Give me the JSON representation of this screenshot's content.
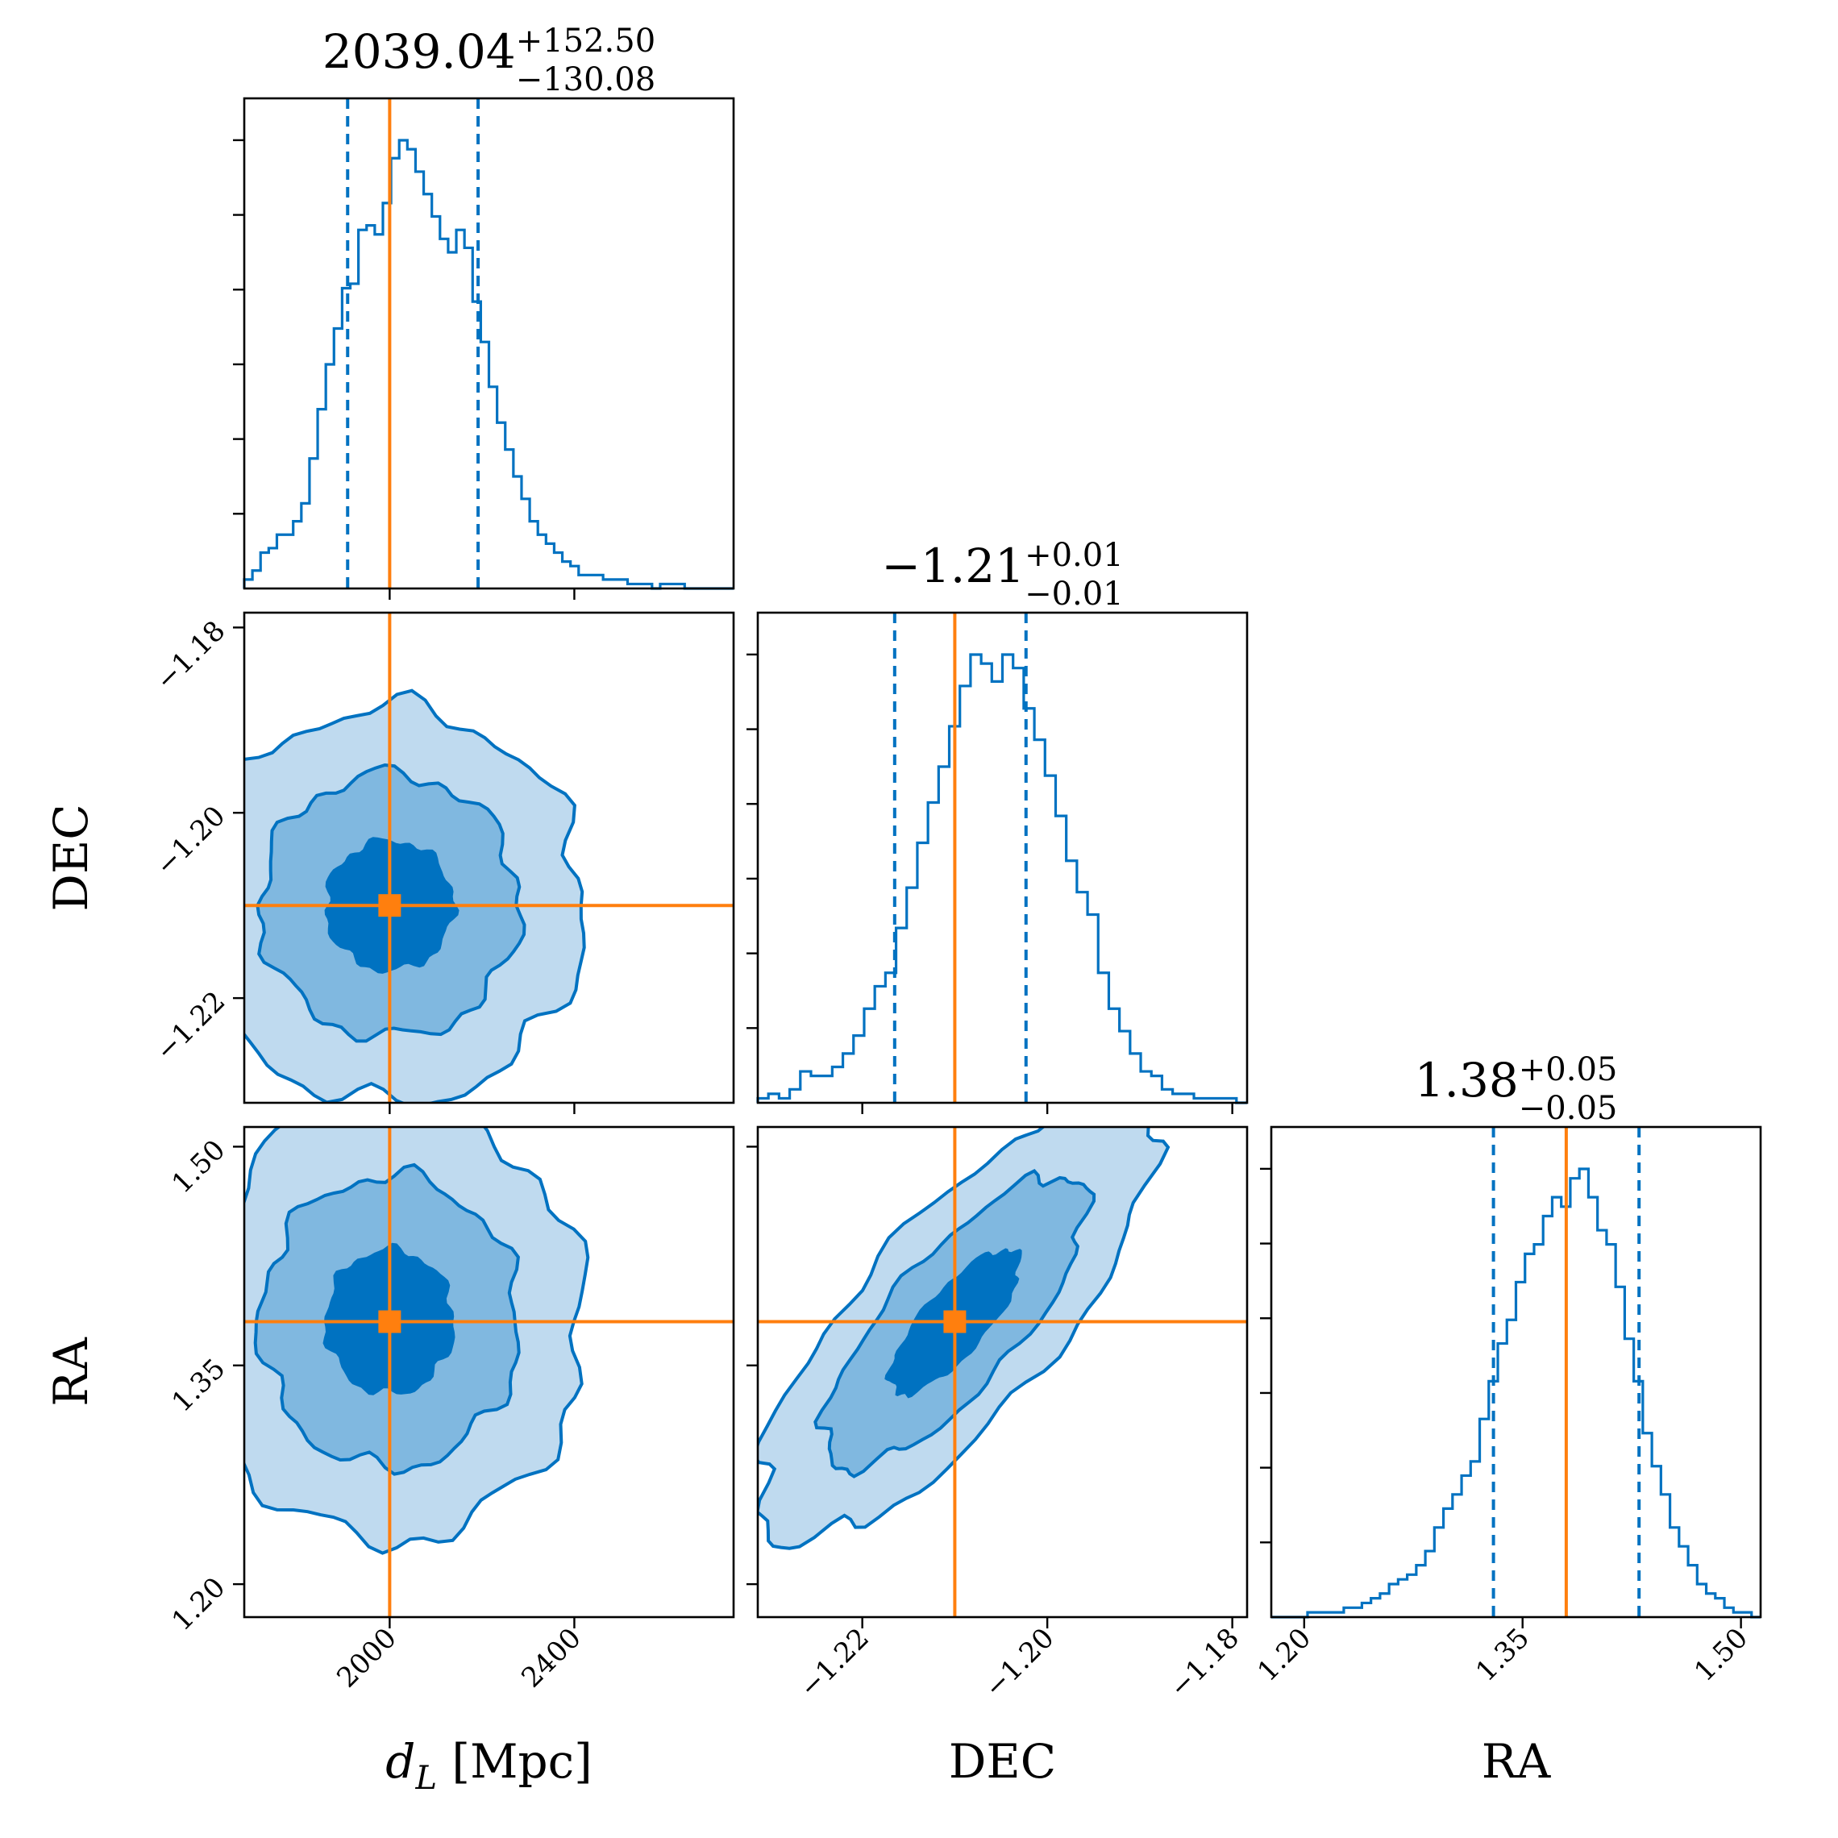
{
  "chart_data": {
    "type": "corner",
    "parameters": [
      {
        "key": "dL",
        "axis_label": "d_L [Mpc]",
        "axis_label_main": "d",
        "axis_label_sub": "L",
        "axis_label_unit": " [Mpc]",
        "range": [
          1685,
          2745
        ],
        "ticks": [
          2000,
          2400
        ],
        "tick_labels": [
          "2000",
          "2400"
        ],
        "truth": 2000,
        "median": 2039.04,
        "q_low": 1908.96,
        "q_high": 2191.54,
        "title_main": "2039.04",
        "title_sup": "+152.50",
        "title_sub": "−130.08",
        "sigma": 140,
        "hist_counts": [
          2,
          4,
          8,
          9,
          12,
          12,
          15,
          19,
          29,
          40,
          50,
          58,
          67,
          68,
          80,
          81,
          79,
          86,
          96,
          100,
          98,
          93,
          88,
          83,
          78,
          75,
          80,
          76,
          64,
          55,
          45,
          37,
          31,
          25,
          20,
          15,
          12,
          10,
          8,
          6,
          5,
          3,
          3,
          3,
          2,
          2,
          2,
          1,
          1,
          1,
          0,
          1,
          1,
          1,
          0,
          0,
          0,
          0,
          0,
          0
        ]
      },
      {
        "key": "DEC",
        "axis_label": "DEC",
        "range": [
          -1.2313,
          -1.1784
        ],
        "ticks": [
          -1.22,
          -1.2,
          -1.18
        ],
        "tick_labels": [
          "−1.22",
          "−1.20",
          "−1.18"
        ],
        "truth": -1.21,
        "median": -1.21,
        "q_low": -1.2165,
        "q_high": -1.2023,
        "title_main": "−1.21",
        "title_sup": "+0.01",
        "title_sub": "−0.01",
        "sigma": 0.0071,
        "hist_counts": [
          1,
          2,
          1,
          3,
          7,
          6,
          6,
          8,
          11,
          15,
          21,
          26,
          29,
          39,
          48,
          58,
          67,
          75,
          84,
          93,
          100,
          98,
          94,
          100,
          97,
          88,
          81,
          73,
          64,
          54,
          47,
          42,
          29,
          21,
          16,
          11,
          7,
          6,
          3,
          2,
          2,
          1,
          1,
          1,
          1,
          0
        ]
      },
      {
        "key": "RA",
        "axis_label": "RA",
        "range": [
          1.1774,
          1.5135
        ],
        "ticks": [
          1.2,
          1.35,
          1.5
        ],
        "tick_labels": [
          "1.20",
          "1.35",
          "1.50"
        ],
        "truth": 1.38,
        "median": 1.38,
        "q_low": 1.33,
        "q_high": 1.43,
        "title_main": "1.38",
        "title_sup": "+0.05",
        "title_sub": "−0.05",
        "sigma": 0.05,
        "hist_counts": [
          0,
          0,
          0,
          0,
          1,
          1,
          1,
          1,
          2,
          2,
          3,
          4,
          5,
          7,
          8,
          9,
          11,
          14,
          19,
          23,
          26,
          30,
          33,
          42,
          50,
          58,
          63,
          71,
          77,
          79,
          85,
          89,
          87,
          93,
          95,
          89,
          82,
          79,
          70,
          59,
          50,
          39,
          32,
          26,
          19,
          15,
          11,
          7,
          5,
          4,
          2,
          1,
          1,
          0
        ]
      }
    ],
    "correlations": {
      "DEC_dL": 0.0,
      "RA_dL": 0.0,
      "RA_DEC": 0.78
    },
    "contour_levels": [
      0.393,
      0.865,
      0.989
    ],
    "colors": {
      "hist": "#0072c1",
      "contour_fills": [
        "#bfdaef",
        "#80b8e0",
        "#0072c1"
      ],
      "truth": "#ff7f0e"
    }
  }
}
